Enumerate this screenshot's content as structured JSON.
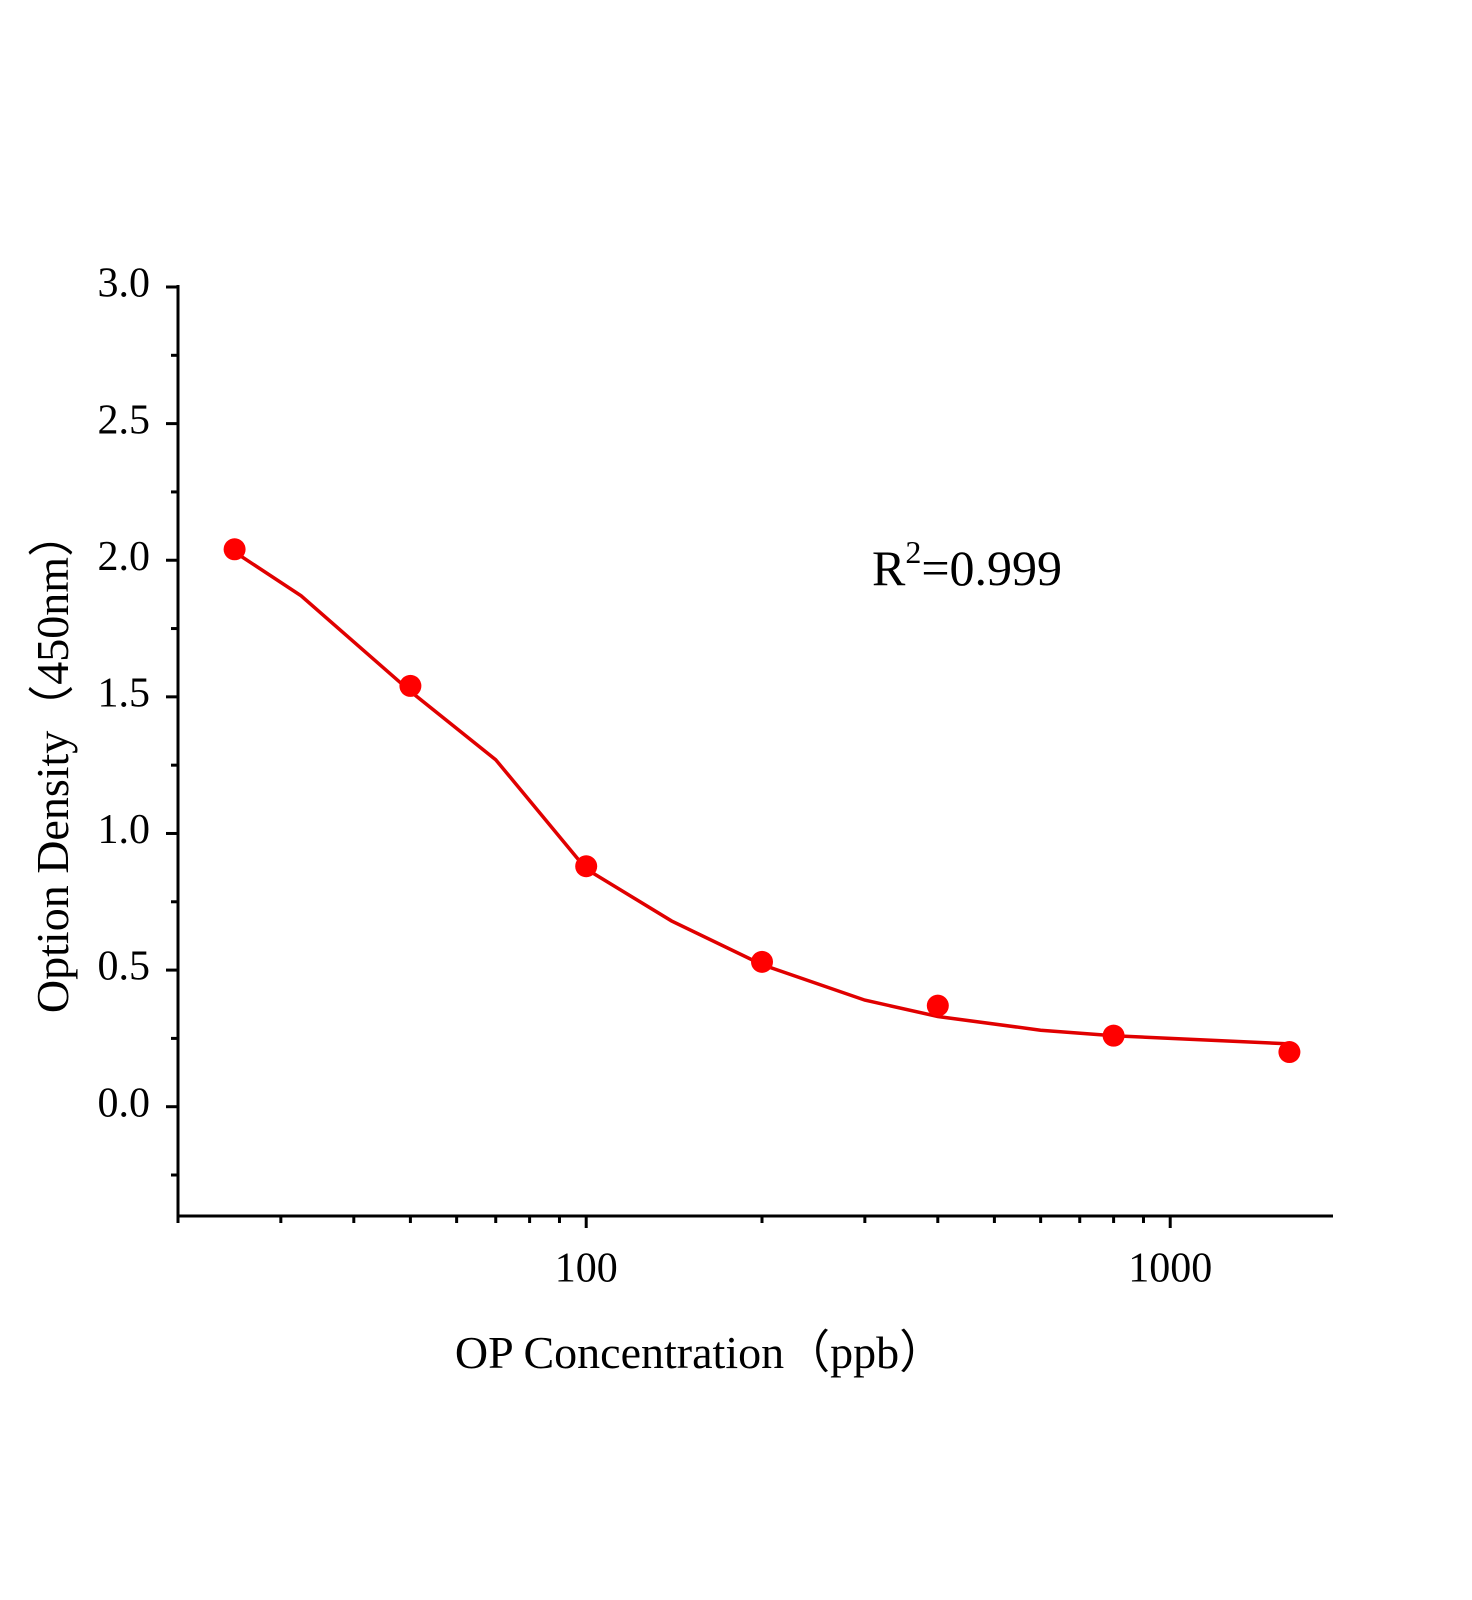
{
  "chart_data": {
    "type": "scatter",
    "x_label": "OP Concentration（ppb）",
    "y_label": "Option Density（450nm）",
    "annotation": {
      "base": "R",
      "sup": "2",
      "rest": "=0.999"
    },
    "log_x": true,
    "xlim": [
      20,
      1900
    ],
    "ylim": [
      -0.4,
      3.0
    ],
    "xticks": [
      100,
      1000
    ],
    "yticks": [
      {
        "value": 0,
        "label": "0.0"
      },
      0.5,
      {
        "value": 1,
        "label": "1.0"
      },
      1.5,
      {
        "value": 2,
        "label": "2.0"
      },
      2.5,
      {
        "value": 3,
        "label": "3.0"
      }
    ],
    "series": [
      {
        "kind": "points",
        "color": "#ff0000",
        "x": [
          25,
          50,
          100,
          200,
          400,
          800,
          1600
        ],
        "values": [
          2.04,
          1.54,
          0.88,
          0.53,
          0.37,
          0.26,
          0.2
        ]
      },
      {
        "kind": "curve",
        "color": "#e00000",
        "x": [
          25,
          32.5,
          50,
          70,
          100,
          140,
          200,
          300,
          400,
          600,
          800,
          1600
        ],
        "values": [
          2.03,
          1.87,
          1.52,
          1.27,
          0.87,
          0.68,
          0.52,
          0.39,
          0.33,
          0.28,
          0.26,
          0.23
        ]
      }
    ]
  }
}
